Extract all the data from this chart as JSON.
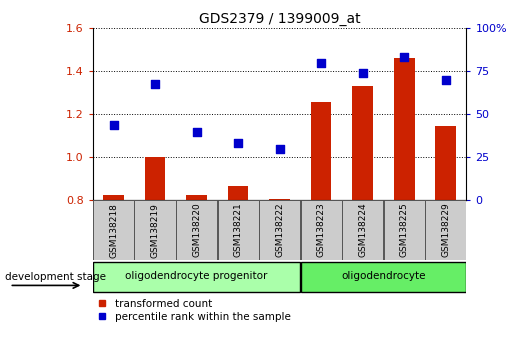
{
  "title": "GDS2379 / 1399009_at",
  "samples": [
    "GSM138218",
    "GSM138219",
    "GSM138220",
    "GSM138221",
    "GSM138222",
    "GSM138223",
    "GSM138224",
    "GSM138225",
    "GSM138229"
  ],
  "red_values": [
    0.825,
    1.0,
    0.825,
    0.865,
    0.805,
    1.255,
    1.33,
    1.46,
    1.145
  ],
  "blue_values": [
    43.75,
    67.5,
    39.375,
    33.125,
    30.0,
    80.0,
    73.75,
    83.125,
    70.0
  ],
  "ylim_left": [
    0.8,
    1.6
  ],
  "ylim_right": [
    0,
    100
  ],
  "yticks_left": [
    0.8,
    1.0,
    1.2,
    1.4,
    1.6
  ],
  "yticks_right": [
    0,
    25,
    50,
    75,
    100
  ],
  "ytick_labels_right": [
    "0",
    "25",
    "50",
    "75",
    "100%"
  ],
  "group1_label": "oligodendrocyte progenitor",
  "group2_label": "oligodendrocyte",
  "group1_indices": [
    0,
    1,
    2,
    3,
    4
  ],
  "group2_indices": [
    5,
    6,
    7,
    8
  ],
  "dev_stage_label": "development stage",
  "legend_red": "transformed count",
  "legend_blue": "percentile rank within the sample",
  "bar_color": "#cc2200",
  "dot_color": "#0000cc",
  "group1_color": "#aaffaa",
  "group2_color": "#66ee66",
  "tick_label_color_left": "#cc2200",
  "tick_label_color_right": "#0000cc",
  "bar_width": 0.5,
  "dot_size": 28,
  "bg_color": "#ffffff"
}
